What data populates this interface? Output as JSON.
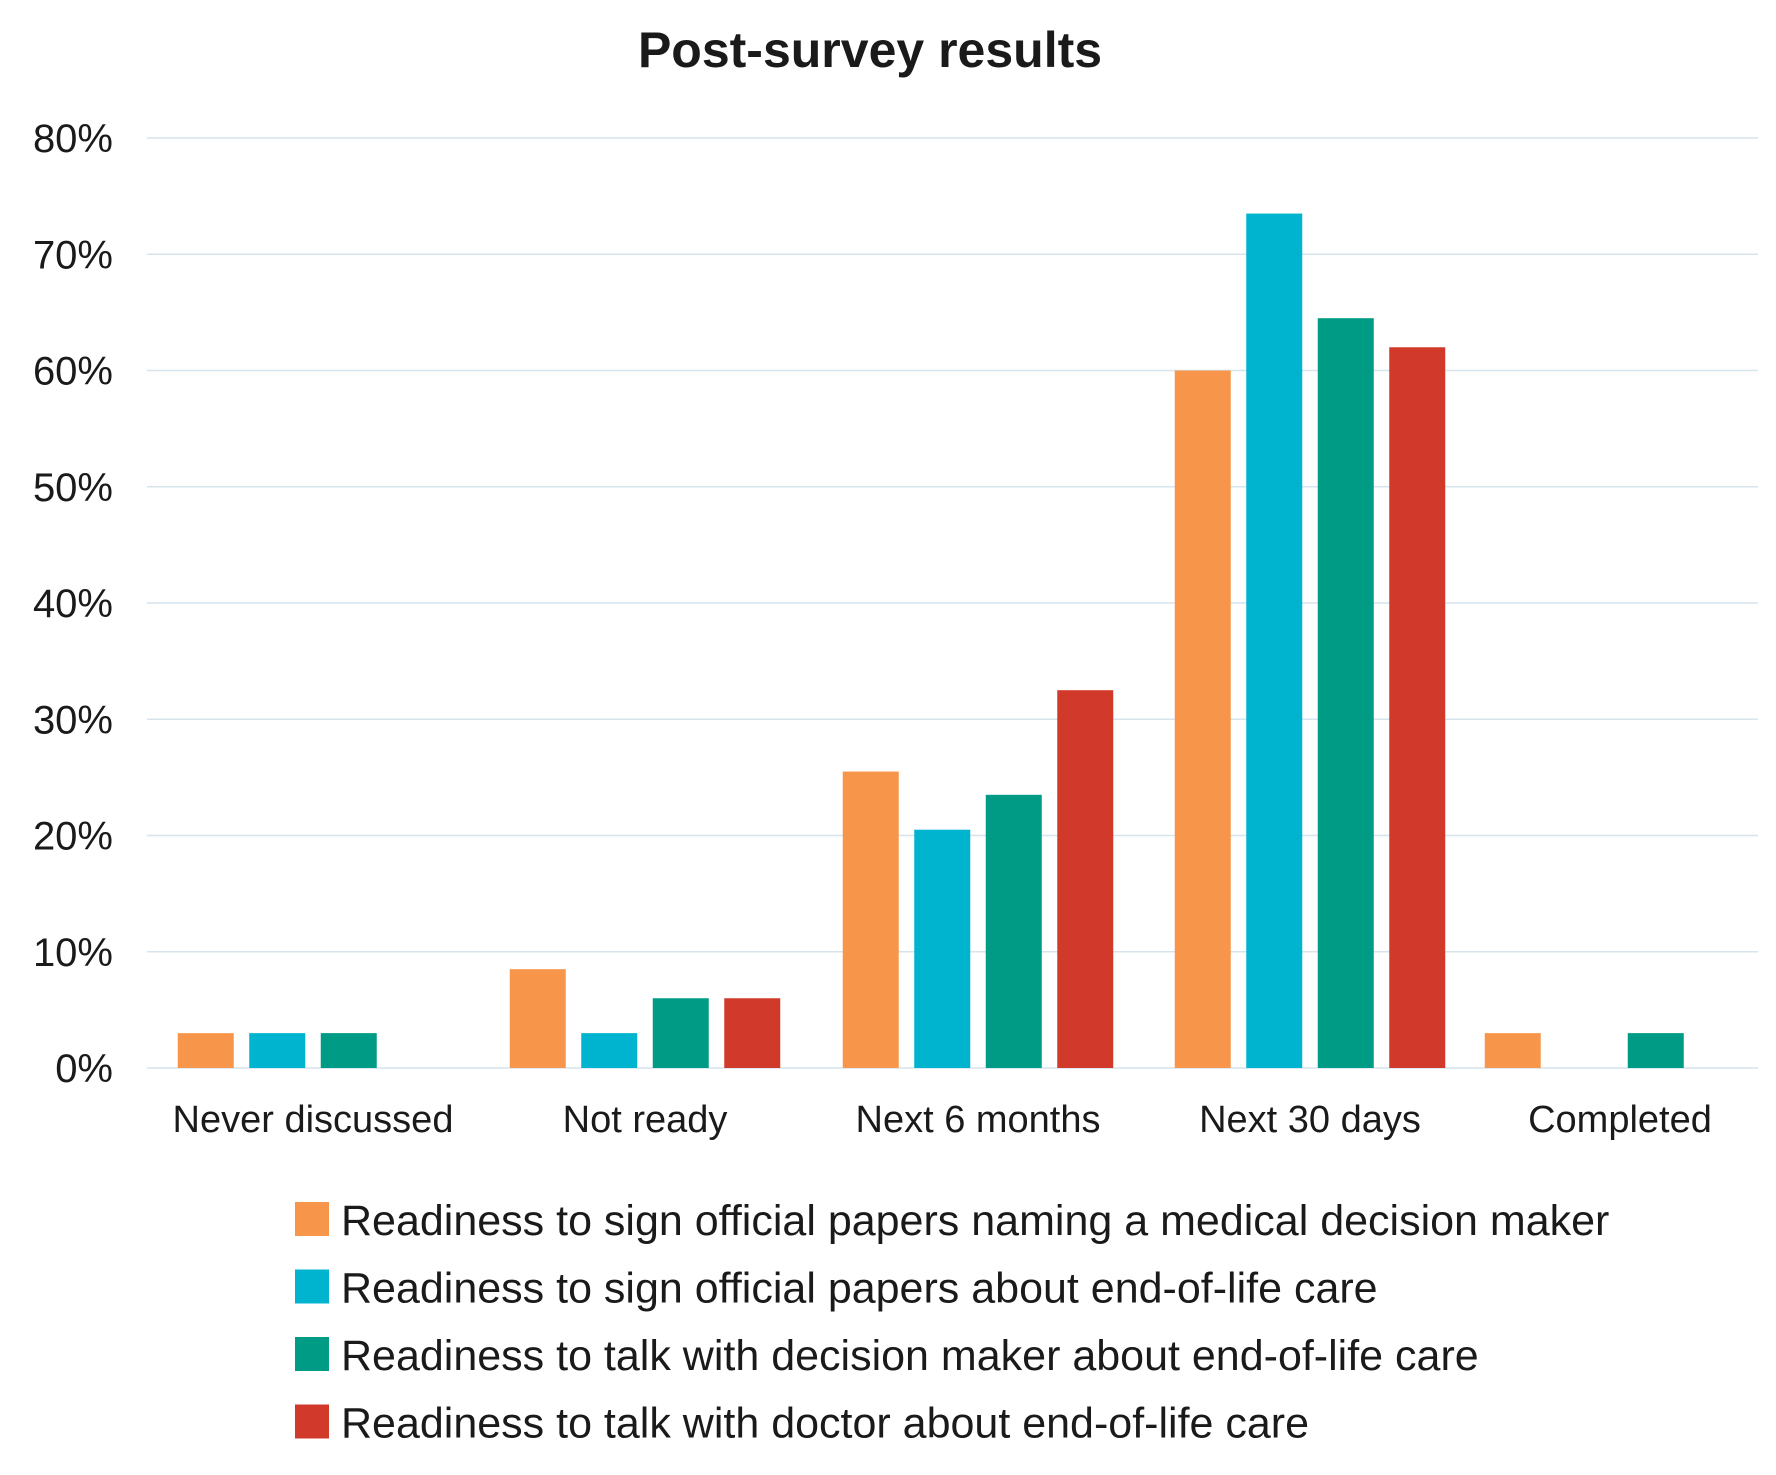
{
  "chart_data": {
    "type": "bar",
    "title": "Post-survey results",
    "xlabel": "",
    "ylabel": "",
    "ylim": [
      0,
      80
    ],
    "y_ticks": [
      "0%",
      "10%",
      "20%",
      "30%",
      "40%",
      "50%",
      "60%",
      "70%",
      "80%"
    ],
    "grid": true,
    "legend_position": "bottom",
    "categories": [
      "Never discussed",
      "Not ready",
      "Next 6 months",
      "Next 30 days",
      "Completed"
    ],
    "series": [
      {
        "name": "Readiness to sign official papers naming a medical decision maker",
        "color": "#f7964a",
        "values": [
          3,
          8.5,
          25.5,
          60,
          3
        ]
      },
      {
        "name": "Readiness to sign official papers about end-of-life care",
        "color": "#00b4cf",
        "values": [
          3,
          3,
          20.5,
          73.5,
          0
        ]
      },
      {
        "name": "Readiness to talk with decision maker about end-of-life care",
        "color": "#009b84",
        "values": [
          3,
          6,
          23.5,
          64.5,
          3
        ]
      },
      {
        "name": "Readiness to talk with doctor about end-of-life care",
        "color": "#d13a2b",
        "values": [
          0,
          6,
          32.5,
          62,
          0
        ]
      }
    ]
  }
}
